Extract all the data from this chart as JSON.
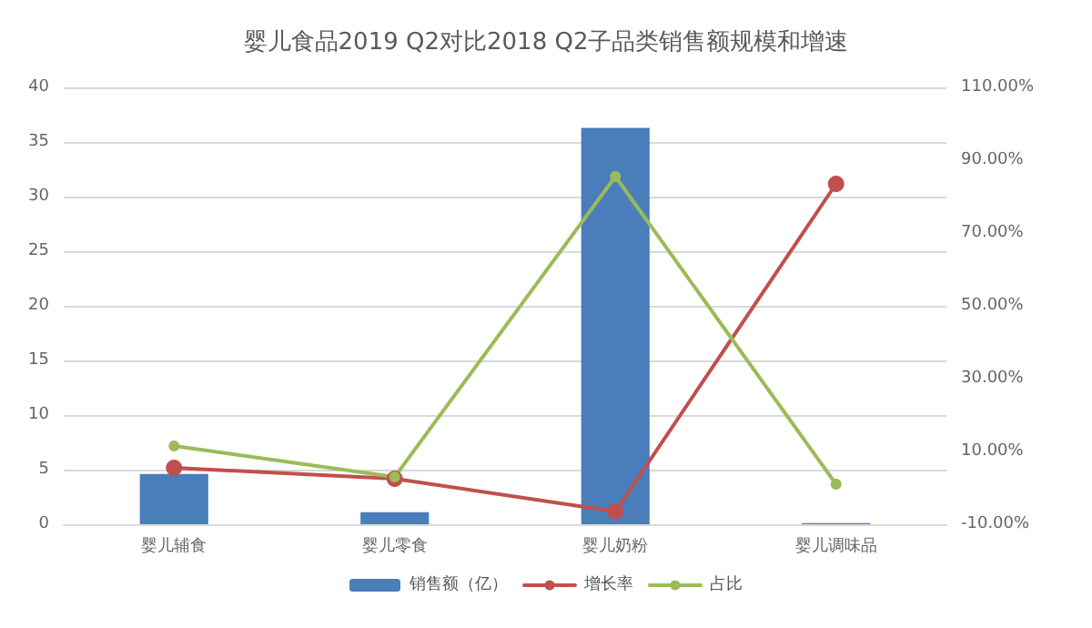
{
  "chart_data": {
    "type": "bar",
    "title": "婴儿食品2019 Q2对比2018 Q2子品类销售额规模和增速",
    "categories": [
      "婴儿辅食",
      "婴儿零食",
      "婴儿奶粉",
      "婴儿调味品"
    ],
    "series": [
      {
        "name": "销售额（亿）",
        "color": "#4a7ebb",
        "values": [
          4.6,
          1.1,
          36.3,
          0.1
        ]
      },
      {
        "name": "增长率",
        "type": "line",
        "axis": "y2",
        "color": "#c0504d",
        "values": [
          5.5,
          2.5,
          -6.5,
          83.5
        ]
      },
      {
        "name": "占比",
        "type": "line",
        "axis": "y2",
        "color": "#9bbb59",
        "values": [
          11.5,
          3,
          85.5,
          1
        ]
      }
    ],
    "ylim": [
      0,
      40
    ],
    "yticks": [
      0,
      5,
      10,
      15,
      20,
      25,
      30,
      35,
      40
    ],
    "y2lim": [
      -10,
      110
    ],
    "y2ticks": [
      {
        "value": -10,
        "label": "-10.00%"
      },
      {
        "value": 10,
        "label": "10.00%"
      },
      {
        "value": 30,
        "label": "30.00%"
      },
      {
        "value": 50,
        "label": "50.00%"
      },
      {
        "value": 70,
        "label": "70.00%"
      },
      {
        "value": 90,
        "label": "90.00%"
      },
      {
        "value": 110,
        "label": "110.00%"
      }
    ],
    "grid": "y",
    "legend": "bottom",
    "marker": "circle",
    "line_style": "solid"
  }
}
